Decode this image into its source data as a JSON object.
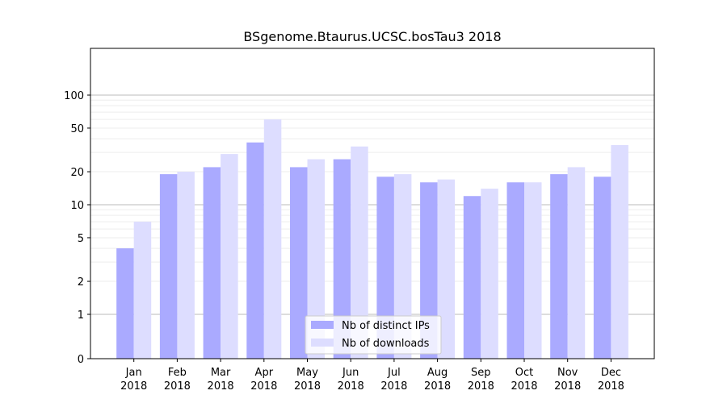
{
  "chart_data": {
    "type": "bar",
    "title": "BSgenome.Btaurus.UCSC.bosTau3 2018",
    "xlabel": "",
    "ylabel": "",
    "y_scale": "symlog",
    "ylim": [
      0,
      120
    ],
    "categories": [
      [
        "Jan",
        "2018"
      ],
      [
        "Feb",
        "2018"
      ],
      [
        "Mar",
        "2018"
      ],
      [
        "Apr",
        "2018"
      ],
      [
        "May",
        "2018"
      ],
      [
        "Jun",
        "2018"
      ],
      [
        "Jul",
        "2018"
      ],
      [
        "Aug",
        "2018"
      ],
      [
        "Sep",
        "2018"
      ],
      [
        "Oct",
        "2018"
      ],
      [
        "Nov",
        "2018"
      ],
      [
        "Dec",
        "2018"
      ]
    ],
    "y_ticks": [
      0,
      1,
      2,
      5,
      10,
      20,
      50,
      100
    ],
    "y_tick_labels": [
      "0",
      "1",
      "2",
      "5",
      "10",
      "20",
      "50",
      "100"
    ],
    "series": [
      {
        "name": "Nb of distinct IPs",
        "color": "#aaaaff",
        "values": [
          4,
          19,
          22,
          37,
          22,
          26,
          18,
          16,
          12,
          16,
          19,
          18
        ]
      },
      {
        "name": "Nb of downloads",
        "color": "#ddddff",
        "values": [
          7,
          20,
          29,
          60,
          26,
          34,
          19,
          17,
          14,
          16,
          22,
          35
        ]
      }
    ],
    "legend_position": "bottom-center",
    "grid": true
  }
}
